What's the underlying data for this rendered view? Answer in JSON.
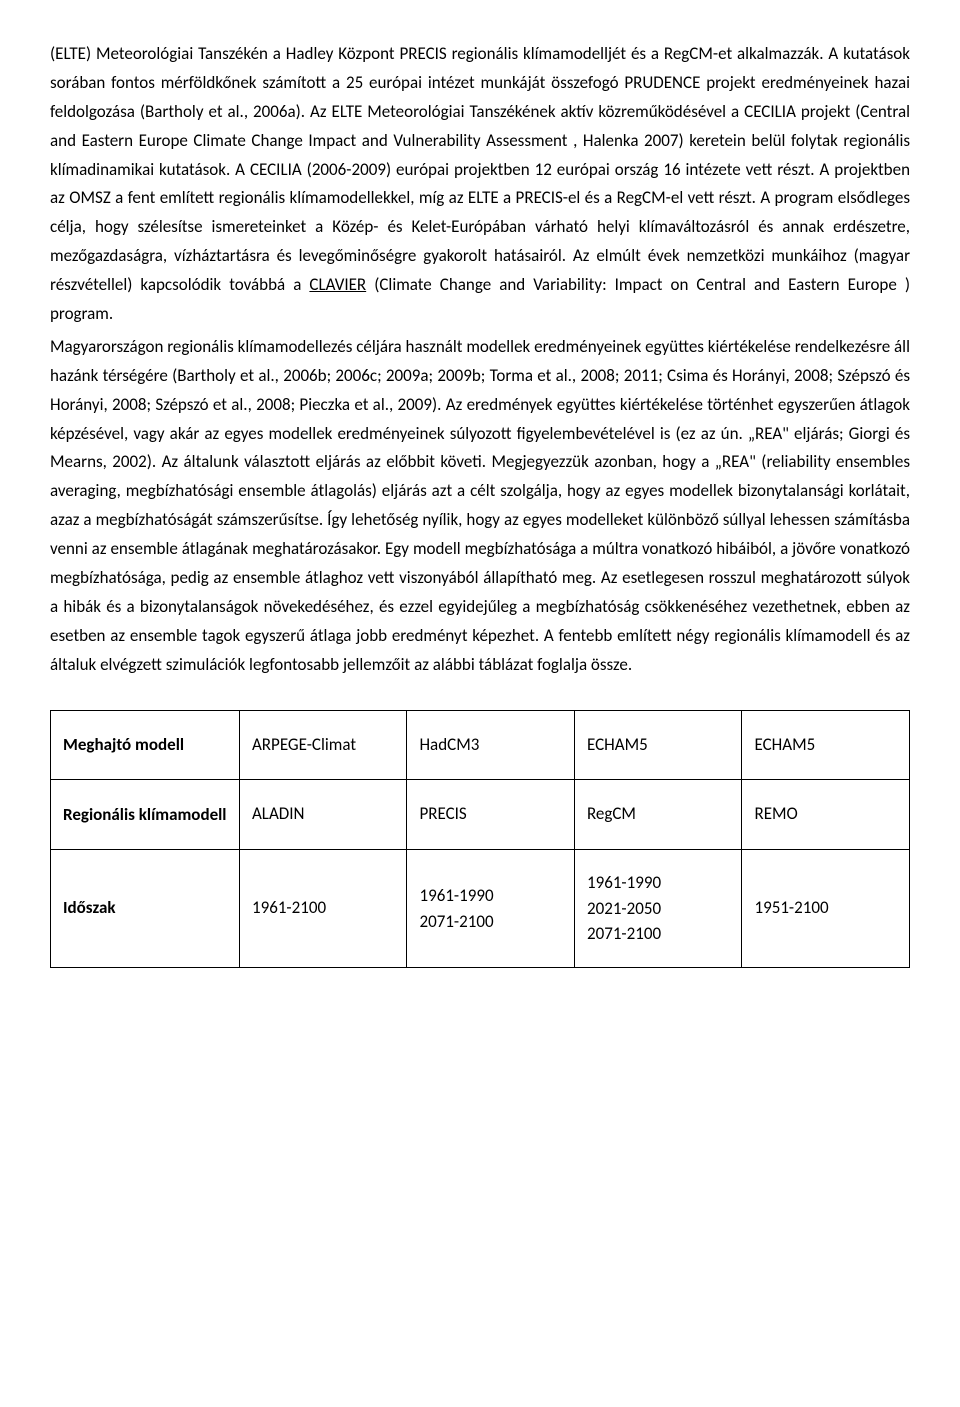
{
  "paragraph1": {
    "part1": "(ELTE) Meteorológiai Tanszékén a Hadley Központ PRECIS regionális klímamodelljét és a RegCM-et alkalmazzák. A kutatások sorában fontos mérföldkőnek számított a 25 európai intézet munkáját összefogó PRUDENCE projekt eredményeinek hazai feldolgozása (Bartholy et al., 2006a). Az ELTE Meteorológiai Tanszékének aktív közreműködésével a CECILIA projekt (Central and Eastern Europe Climate Change Impact and Vulnerability Assessment , Halenka 2007) keretein belül folytak regionális klímadinamikai kutatások. A CECILIA (2006-2009) európai projektben 12 európai ország 16 intézete vett részt. A projektben az OMSZ a fent említett regionális klímamodellekkel, míg az ELTE a PRECIS-el és a RegCM-el vett részt. A program elsődleges célja, hogy szélesítse ismereteinket a Közép- és Kelet-Európában várható helyi klímaváltozásról és annak erdészetre, mezőgazdaságra, vízháztartásra és levegőminőségre gyakorolt hatásairól. Az elmúlt évek nemzetközi munkáihoz (magyar részvétellel) kapcsolódik továbbá a ",
    "link": "CLAVIER",
    "part2": " (Climate Change and Variability: Impact on Central and Eastern Europe ) program."
  },
  "paragraph2": "Magyarországon regionális klímamodellezés céljára használt modellek eredményeinek együttes kiértékelése rendelkezésre áll hazánk térségére (Bartholy et al., 2006b; 2006c; 2009a; 2009b; Torma et al., 2008; 2011; Csima és Horányi, 2008; Szépszó és Horányi, 2008; Szépszó et al., 2008; Pieczka et al., 2009). Az eredmények együttes kiértékelése történhet egyszerűen átlagok képzésével, vagy akár az egyes modellek eredményeinek súlyozott figyelembevételével is (ez az ún. „REA\" eljárás; Giorgi és Mearns, 2002). Az általunk választott eljárás az előbbit követi. Megjegyezzük azonban, hogy a „REA\" (reliability ensembles averaging, megbízhatósági ensemble átlagolás) eljárás azt a célt szolgálja, hogy az egyes modellek bizonytalansági korlátait, azaz a megbízhatóságát számszerűsítse. Így lehetőség nyílik, hogy az egyes modelleket különböző súllyal lehessen számításba venni az ensemble átlagának meghatározásakor. Egy modell megbízhatósága a múltra vonatkozó hibáiból, a jövőre vonatkozó megbízhatósága, pedig az ensemble átlaghoz vett viszonyából állapítható meg. Az esetlegesen rosszul meghatározott súlyok a hibák és a bizonytalanságok növekedéséhez, és ezzel egyidejűleg a megbízhatóság csökkenéséhez vezethetnek, ebben az esetben az ensemble tagok egyszerű átlaga jobb eredményt képezhet. A fentebb említett négy regionális klímamodell és az általuk elvégzett szimulációk legfontosabb jellemzőit az alábbi táblázat foglalja össze.",
  "table": {
    "rows": [
      {
        "header": "Meghajtó modell",
        "cells": [
          "ARPEGE-Climat",
          "HadCM3",
          "ECHAM5",
          "ECHAM5"
        ]
      },
      {
        "header": "Regionális klímamodell",
        "cells": [
          "ALADIN",
          "PRECIS",
          "RegCM",
          "REMO"
        ]
      },
      {
        "header": "Időszak",
        "cells": [
          "1961-2100",
          "1961-1990\n2071-2100",
          "1961-1990\n2021-2050\n2071-2100",
          "1951-2100"
        ]
      }
    ]
  }
}
